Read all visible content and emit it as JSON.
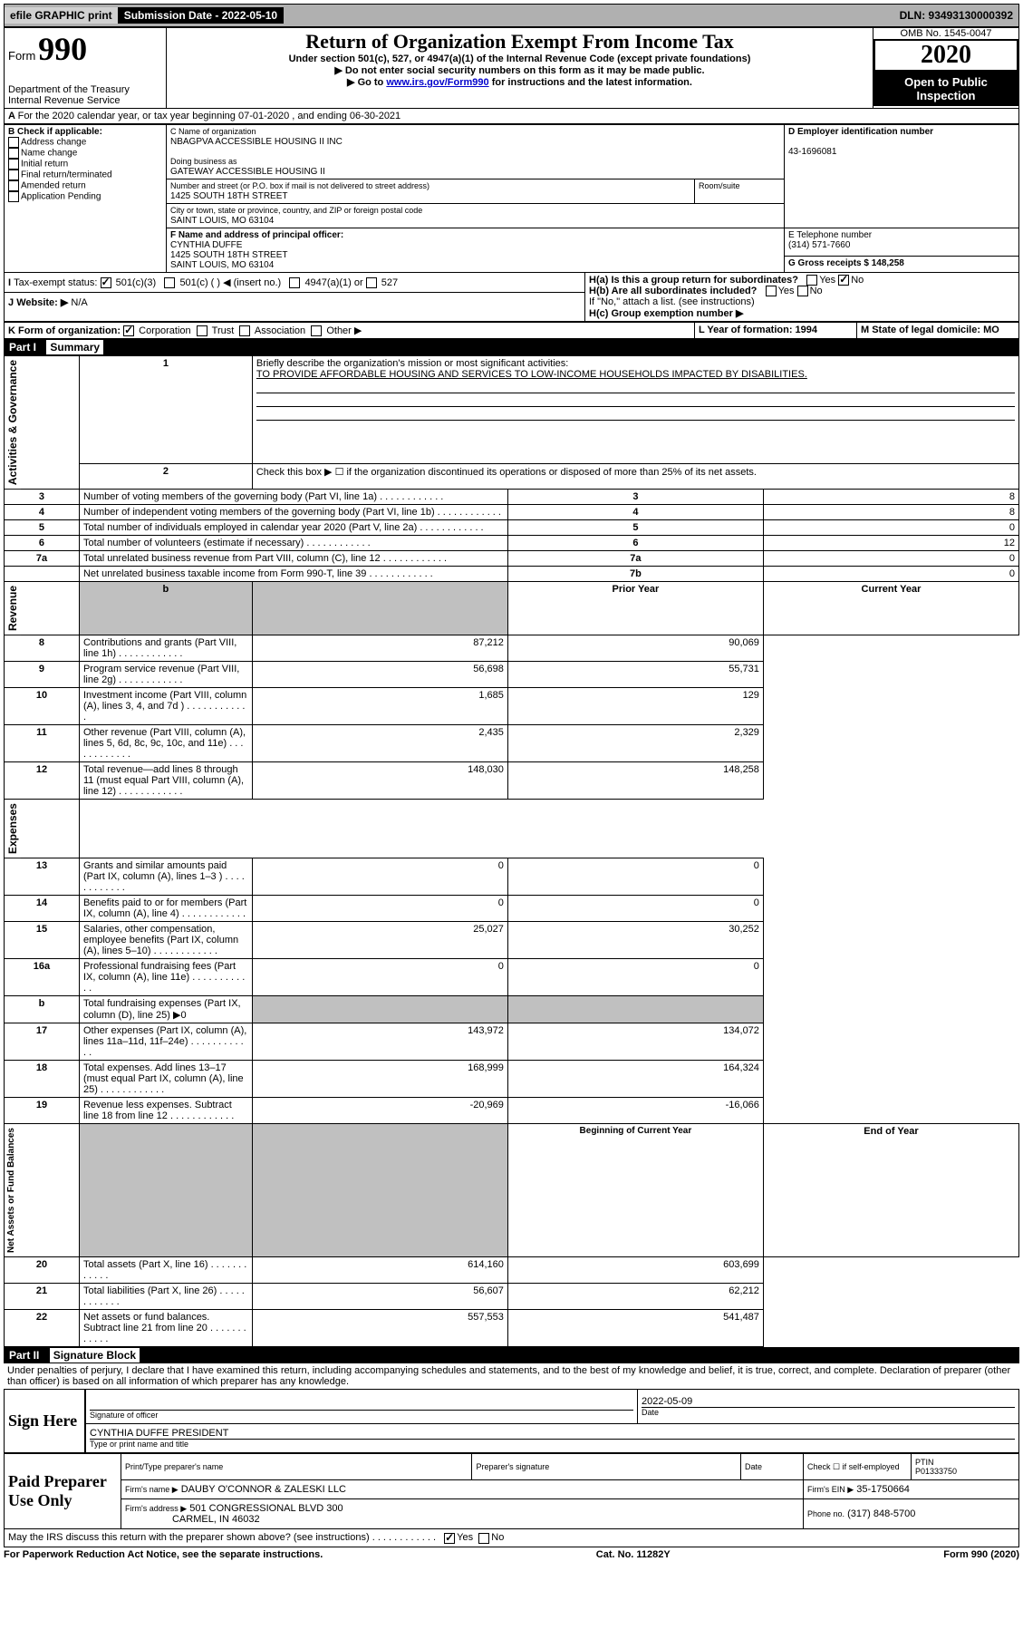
{
  "topbar": {
    "efile": "efile GRAPHIC print",
    "sub_label": "Submission Date - 2022-05-10",
    "dln": "DLN: 93493130000392"
  },
  "header": {
    "form_prefix": "Form",
    "form_no": "990",
    "dept": "Department of the Treasury\nInternal Revenue Service",
    "title": "Return of Organization Exempt From Income Tax",
    "subtitle": "Under section 501(c), 527, or 4947(a)(1) of the Internal Revenue Code (except private foundations)",
    "warn": "▶ Do not enter social security numbers on this form as it may be made public.",
    "instr_prefix": "▶ Go to ",
    "instr_link": "www.irs.gov/Form990",
    "instr_suffix": " for instructions and the latest information.",
    "omb": "OMB No. 1545-0047",
    "year": "2020",
    "open": "Open to Public Inspection"
  },
  "lineA": "For the 2020 calendar year, or tax year beginning 07-01-2020    , and ending 06-30-2021",
  "boxB": {
    "label": "B Check if applicable:",
    "opts": [
      "Address change",
      "Name change",
      "Initial return",
      "Final return/terminated",
      "Amended return",
      "Application Pending"
    ]
  },
  "boxC": {
    "name_label": "C Name of organization",
    "name": "NBAGPVA ACCESSIBLE HOUSING II INC",
    "dba_label": "Doing business as",
    "dba": "GATEWAY ACCESSIBLE HOUSING II",
    "street_label": "Number and street (or P.O. box if mail is not delivered to street address)",
    "room": "Room/suite",
    "street": "1425 SOUTH 18TH STREET",
    "city_label": "City or town, state or province, country, and ZIP or foreign postal code",
    "city": "SAINT LOUIS, MO  63104"
  },
  "boxD": {
    "label": "D Employer identification number",
    "value": "43-1696081"
  },
  "boxE": {
    "label": "E Telephone number",
    "value": "(314) 571-7660"
  },
  "boxG": {
    "label": "G Gross receipts $ 148,258"
  },
  "boxF": {
    "label": "F  Name and address of principal officer:",
    "name": "CYNTHIA DUFFE",
    "addr1": "1425 SOUTH 18TH STREET",
    "addr2": "SAINT LOUIS, MO  63104"
  },
  "boxH": {
    "a": "H(a)  Is this a group return for subordinates?",
    "b": "H(b)  Are all subordinates included?",
    "b_note": "If \"No,\" attach a list. (see instructions)",
    "c": "H(c)  Group exemption number ▶",
    "yes": "Yes",
    "no": "No"
  },
  "lineI": {
    "label": "Tax-exempt status:",
    "o1": "501(c)(3)",
    "o2": "501(c) (  ) ◀ (insert no.)",
    "o3": "4947(a)(1) or",
    "o4": "527"
  },
  "lineJ": {
    "label": "Website: ▶",
    "value": "N/A"
  },
  "lineK": {
    "label": "K Form of organization:",
    "corp": "Corporation",
    "trust": "Trust",
    "assoc": "Association",
    "other": "Other ▶"
  },
  "lineL": {
    "label": "L Year of formation: 1994"
  },
  "lineM": {
    "label": "M State of legal domicile: MO"
  },
  "part1": {
    "header": "Part I",
    "title": "Summary",
    "l1_label": "Briefly describe the organization's mission or most significant activities:",
    "l1": "TO PROVIDE AFFORDABLE HOUSING AND SERVICES TO LOW-INCOME HOUSEHOLDS IMPACTED BY DISABILITIES.",
    "l2": "Check this box ▶ ☐  if the organization discontinued its operations or disposed of more than 25% of its net assets.",
    "rows_gov": [
      {
        "n": "3",
        "t": "Number of voting members of the governing body (Part VI, line 1a)",
        "r": "3",
        "v": "8"
      },
      {
        "n": "4",
        "t": "Number of independent voting members of the governing body (Part VI, line 1b)",
        "r": "4",
        "v": "8"
      },
      {
        "n": "5",
        "t": "Total number of individuals employed in calendar year 2020 (Part V, line 2a)",
        "r": "5",
        "v": "0"
      },
      {
        "n": "6",
        "t": "Total number of volunteers (estimate if necessary)",
        "r": "6",
        "v": "12"
      },
      {
        "n": "7a",
        "t": "Total unrelated business revenue from Part VIII, column (C), line 12",
        "r": "7a",
        "v": "0"
      },
      {
        "n": "",
        "t": "Net unrelated business taxable income from Form 990-T, line 39",
        "r": "7b",
        "v": "0"
      }
    ],
    "hdr_prior": "Prior Year",
    "hdr_curr": "Current Year",
    "rows_rev": [
      {
        "n": "8",
        "t": "Contributions and grants (Part VIII, line 1h)",
        "p": "87,212",
        "c": "90,069"
      },
      {
        "n": "9",
        "t": "Program service revenue (Part VIII, line 2g)",
        "p": "56,698",
        "c": "55,731"
      },
      {
        "n": "10",
        "t": "Investment income (Part VIII, column (A), lines 3, 4, and 7d )",
        "p": "1,685",
        "c": "129"
      },
      {
        "n": "11",
        "t": "Other revenue (Part VIII, column (A), lines 5, 6d, 8c, 9c, 10c, and 11e)",
        "p": "2,435",
        "c": "2,329"
      },
      {
        "n": "12",
        "t": "Total revenue—add lines 8 through 11 (must equal Part VIII, column (A), line 12)",
        "p": "148,030",
        "c": "148,258"
      }
    ],
    "rows_exp": [
      {
        "n": "13",
        "t": "Grants and similar amounts paid (Part IX, column (A), lines 1–3 )",
        "p": "0",
        "c": "0"
      },
      {
        "n": "14",
        "t": "Benefits paid to or for members (Part IX, column (A), line 4)",
        "p": "0",
        "c": "0"
      },
      {
        "n": "15",
        "t": "Salaries, other compensation, employee benefits (Part IX, column (A), lines 5–10)",
        "p": "25,027",
        "c": "30,252"
      },
      {
        "n": "16a",
        "t": "Professional fundraising fees (Part IX, column (A), line 11e)",
        "p": "0",
        "c": "0"
      },
      {
        "n": "b",
        "t": "Total fundraising expenses (Part IX, column (D), line 25) ▶0",
        "p": "",
        "c": "",
        "shade": true
      },
      {
        "n": "17",
        "t": "Other expenses (Part IX, column (A), lines 11a–11d, 11f–24e)",
        "p": "143,972",
        "c": "134,072"
      },
      {
        "n": "18",
        "t": "Total expenses. Add lines 13–17 (must equal Part IX, column (A), line 25)",
        "p": "168,999",
        "c": "164,324"
      },
      {
        "n": "19",
        "t": "Revenue less expenses. Subtract line 18 from line 12",
        "p": "-20,969",
        "c": "-16,066"
      }
    ],
    "hdr_begin": "Beginning of Current Year",
    "hdr_end": "End of Year",
    "rows_net": [
      {
        "n": "20",
        "t": "Total assets (Part X, line 16)",
        "p": "614,160",
        "c": "603,699"
      },
      {
        "n": "21",
        "t": "Total liabilities (Part X, line 26)",
        "p": "56,607",
        "c": "62,212"
      },
      {
        "n": "22",
        "t": "Net assets or fund balances. Subtract line 21 from line 20",
        "p": "557,553",
        "c": "541,487"
      }
    ]
  },
  "vlabels": {
    "gov": "Activities & Governance",
    "rev": "Revenue",
    "exp": "Expenses",
    "net": "Net Assets or Fund Balances"
  },
  "part2": {
    "header": "Part II",
    "title": "Signature Block",
    "decl": "Under penalties of perjury, I declare that I have examined this return, including accompanying schedules and statements, and to the best of my knowledge and belief, it is true, correct, and complete. Declaration of preparer (other than officer) is based on all information of which preparer has any knowledge."
  },
  "sign": {
    "here": "Sign Here",
    "sig_officer": "Signature of officer",
    "date": "Date",
    "date_val": "2022-05-09",
    "name": "CYNTHIA DUFFE PRESIDENT",
    "name_label": "Type or print name and title"
  },
  "paid": {
    "label": "Paid Preparer Use Only",
    "c1": "Print/Type preparer's name",
    "c2": "Preparer's signature",
    "c3": "Date",
    "c4a": "Check ☐ if self-employed",
    "c4b": "PTIN",
    "ptin": "P01333750",
    "firm_name_l": "Firm's name     ▶",
    "firm_name": "DAUBY O'CONNOR & ZALESKI LLC",
    "firm_ein_l": "Firm's EIN ▶",
    "firm_ein": "35-1750664",
    "firm_addr_l": "Firm's address ▶",
    "firm_addr1": "501 CONGRESSIONAL BLVD 300",
    "firm_addr2": "CARMEL, IN  46032",
    "phone_l": "Phone no.",
    "phone": "(317) 848-5700",
    "discuss": "May the IRS discuss this return with the preparer shown above? (see instructions)",
    "yes": "Yes",
    "no": "No"
  },
  "footer": {
    "left": "For Paperwork Reduction Act Notice, see the separate instructions.",
    "mid": "Cat. No. 11282Y",
    "right": "Form 990 (2020)"
  }
}
